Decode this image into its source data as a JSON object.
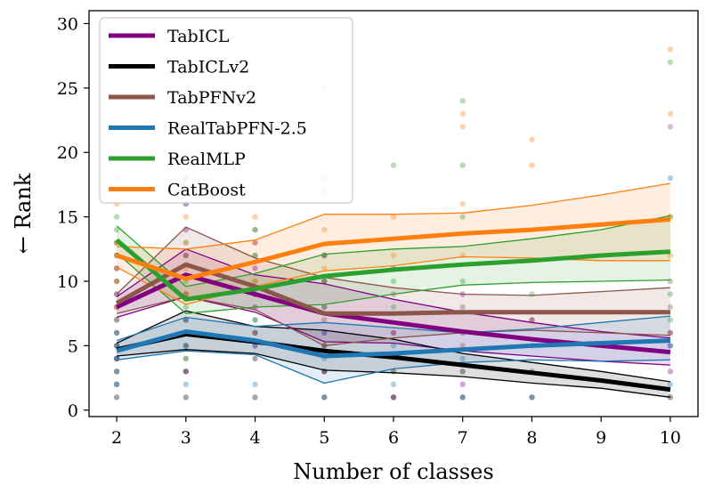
{
  "chart_data": {
    "type": "line",
    "title": "",
    "xlabel": "Number of classes",
    "ylabel": "← Rank",
    "xlim": [
      1.6,
      10.4
    ],
    "ylim": [
      -0.5,
      31.0
    ],
    "xticks": [
      2,
      3,
      4,
      5,
      6,
      7,
      8,
      9,
      10
    ],
    "xtick_labels": [
      "2",
      "3",
      "4",
      "5",
      "6",
      "7",
      "8",
      "9",
      "10"
    ],
    "yticks": [
      0,
      5,
      10,
      15,
      20,
      25,
      30
    ],
    "ytick_labels": [
      "0",
      "5",
      "10",
      "15",
      "20",
      "25",
      "30"
    ],
    "grid": false,
    "legend_position": "top-left",
    "series": [
      {
        "name": "TabICL",
        "color": "#800080",
        "x": [
          2,
          3,
          4,
          5,
          6,
          7,
          8,
          9,
          10
        ],
        "mean": [
          8.0,
          10.5,
          9.0,
          7.5,
          6.8,
          6.1,
          5.5,
          5.0,
          4.5
        ],
        "lower": [
          7.2,
          8.8,
          7.6,
          5.3,
          5.2,
          4.6,
          4.2,
          3.8,
          3.5
        ],
        "upper": [
          8.8,
          12.5,
          10.5,
          9.8,
          8.6,
          7.6,
          6.8,
          6.1,
          5.6
        ],
        "points": [
          [
            2,
            4
          ],
          [
            2,
            7
          ],
          [
            2,
            8
          ],
          [
            2,
            9
          ],
          [
            2,
            10
          ],
          [
            2,
            11
          ],
          [
            2,
            12
          ],
          [
            3,
            3
          ],
          [
            3,
            6
          ],
          [
            3,
            9
          ],
          [
            3,
            12
          ],
          [
            3,
            14
          ],
          [
            3,
            18
          ],
          [
            4,
            5
          ],
          [
            4,
            8
          ],
          [
            4,
            9
          ],
          [
            4,
            11
          ],
          [
            4,
            13
          ],
          [
            5,
            3
          ],
          [
            5,
            6
          ],
          [
            5,
            8
          ],
          [
            5,
            10
          ],
          [
            5,
            12
          ],
          [
            6,
            1
          ],
          [
            6,
            6
          ],
          [
            6,
            11
          ],
          [
            7,
            2
          ],
          [
            7,
            6
          ],
          [
            7,
            9
          ],
          [
            8,
            3
          ],
          [
            8,
            7
          ],
          [
            10,
            3
          ],
          [
            10,
            5
          ],
          [
            10,
            6
          ]
        ]
      },
      {
        "name": "TabICLv2",
        "color": "#000000",
        "x": [
          2,
          3,
          4,
          5,
          6,
          7,
          8,
          9,
          10
        ],
        "mean": [
          4.7,
          5.9,
          5.3,
          4.6,
          4.1,
          3.5,
          2.9,
          2.3,
          1.6
        ],
        "lower": [
          4.2,
          4.7,
          4.4,
          3.1,
          2.9,
          2.6,
          2.1,
          1.7,
          1.0
        ],
        "upper": [
          5.2,
          7.7,
          6.5,
          6.2,
          5.5,
          4.4,
          3.7,
          3.0,
          2.2
        ],
        "points": [
          [
            2,
            1
          ],
          [
            2,
            2
          ],
          [
            2,
            3
          ],
          [
            2,
            4
          ],
          [
            2,
            5
          ],
          [
            2,
            6
          ],
          [
            3,
            1
          ],
          [
            3,
            3
          ],
          [
            3,
            5
          ],
          [
            3,
            7
          ],
          [
            4,
            1
          ],
          [
            4,
            4
          ],
          [
            4,
            6
          ],
          [
            5,
            1
          ],
          [
            5,
            3
          ],
          [
            5,
            5
          ],
          [
            6,
            1
          ],
          [
            6,
            3
          ],
          [
            7,
            1
          ],
          [
            7,
            3
          ],
          [
            8,
            1
          ],
          [
            10,
            1
          ]
        ]
      },
      {
        "name": "TabPFNv2",
        "color": "#8c564b",
        "x": [
          2,
          3,
          4,
          5,
          6,
          7,
          8,
          9,
          10
        ],
        "mean": [
          8.3,
          11.3,
          9.6,
          7.5,
          7.5,
          7.6,
          7.6,
          7.6,
          7.6
        ],
        "lower": [
          7.5,
          8.8,
          7.8,
          5.0,
          5.6,
          6.0,
          6.2,
          6.0,
          5.8
        ],
        "upper": [
          9.0,
          14.2,
          11.8,
          10.3,
          9.5,
          9.0,
          8.9,
          9.2,
          9.5
        ],
        "points": [
          [
            2,
            5
          ],
          [
            2,
            8
          ],
          [
            2,
            9
          ],
          [
            2,
            11
          ],
          [
            2,
            13
          ],
          [
            3,
            4
          ],
          [
            3,
            9
          ],
          [
            3,
            12
          ],
          [
            3,
            16
          ],
          [
            4,
            6
          ],
          [
            4,
            9
          ],
          [
            4,
            12
          ],
          [
            4,
            14
          ],
          [
            5,
            5
          ],
          [
            5,
            7
          ],
          [
            5,
            10
          ],
          [
            5,
            12
          ],
          [
            6,
            6
          ],
          [
            6,
            9
          ],
          [
            7,
            5
          ],
          [
            7,
            8
          ],
          [
            8,
            7
          ],
          [
            10,
            6
          ],
          [
            10,
            8
          ],
          [
            10,
            10
          ],
          [
            10,
            22
          ]
        ]
      },
      {
        "name": "RealTabPFN-2.5",
        "color": "#1f77b4",
        "x": [
          2,
          3,
          4,
          5,
          6,
          7,
          8,
          9,
          10
        ],
        "mean": [
          4.6,
          6.1,
          5.4,
          4.2,
          4.4,
          4.7,
          5.0,
          5.2,
          5.4
        ],
        "lower": [
          3.9,
          4.6,
          4.3,
          2.1,
          3.2,
          3.7,
          3.9,
          3.8,
          3.9
        ],
        "upper": [
          5.4,
          7.2,
          6.5,
          6.8,
          6.4,
          6.0,
          6.3,
          6.8,
          7.3
        ],
        "points": [
          [
            2,
            2
          ],
          [
            2,
            3
          ],
          [
            2,
            4
          ],
          [
            2,
            5
          ],
          [
            2,
            6
          ],
          [
            3,
            2
          ],
          [
            3,
            5
          ],
          [
            3,
            7
          ],
          [
            3,
            16
          ],
          [
            4,
            2
          ],
          [
            4,
            5
          ],
          [
            4,
            7
          ],
          [
            5,
            1
          ],
          [
            5,
            4
          ],
          [
            5,
            6
          ],
          [
            6,
            2
          ],
          [
            6,
            5
          ],
          [
            7,
            1
          ],
          [
            7,
            4
          ],
          [
            8,
            1
          ],
          [
            8,
            5
          ],
          [
            10,
            2
          ],
          [
            10,
            5
          ],
          [
            10,
            18
          ]
        ]
      },
      {
        "name": "RealMLP",
        "color": "#2ca02c",
        "x": [
          2,
          3,
          4,
          5,
          6,
          7,
          8,
          9,
          10
        ],
        "mean": [
          13.2,
          8.6,
          9.4,
          10.4,
          10.9,
          11.3,
          11.6,
          12.0,
          12.3
        ],
        "lower": [
          12.2,
          7.5,
          8.0,
          8.2,
          9.0,
          9.7,
          9.9,
          10.0,
          10.1
        ],
        "upper": [
          14.3,
          9.6,
          10.6,
          12.1,
          12.5,
          12.7,
          13.3,
          14.0,
          15.1
        ],
        "points": [
          [
            2,
            7
          ],
          [
            2,
            10
          ],
          [
            2,
            12
          ],
          [
            2,
            13
          ],
          [
            2,
            14
          ],
          [
            2,
            15
          ],
          [
            3,
            4
          ],
          [
            3,
            8
          ],
          [
            3,
            10
          ],
          [
            3,
            13
          ],
          [
            4,
            7
          ],
          [
            4,
            10
          ],
          [
            4,
            12
          ],
          [
            4,
            14
          ],
          [
            5,
            8
          ],
          [
            5,
            10
          ],
          [
            5,
            12
          ],
          [
            5,
            17
          ],
          [
            6,
            8
          ],
          [
            6,
            10
          ],
          [
            6,
            19
          ],
          [
            7,
            10
          ],
          [
            7,
            15
          ],
          [
            7,
            19
          ],
          [
            7,
            24
          ],
          [
            8,
            9
          ],
          [
            10,
            7
          ],
          [
            10,
            9
          ],
          [
            10,
            15
          ],
          [
            10,
            27
          ]
        ]
      },
      {
        "name": "CatBoost",
        "color": "#ff7f0e",
        "x": [
          2,
          3,
          4,
          5,
          6,
          7,
          8,
          9,
          10
        ],
        "mean": [
          12.0,
          10.2,
          11.5,
          12.9,
          13.3,
          13.7,
          14.0,
          14.4,
          14.8
        ],
        "lower": [
          11.1,
          8.2,
          9.6,
          10.8,
          11.2,
          11.9,
          11.8,
          11.6,
          11.6
        ],
        "upper": [
          12.7,
          12.5,
          13.2,
          15.2,
          15.2,
          15.3,
          15.9,
          16.7,
          17.6
        ],
        "points": [
          [
            2,
            8
          ],
          [
            2,
            10
          ],
          [
            2,
            11
          ],
          [
            2,
            12
          ],
          [
            2,
            13
          ],
          [
            2,
            16
          ],
          [
            2,
            18
          ],
          [
            3,
            9
          ],
          [
            3,
            11
          ],
          [
            3,
            13
          ],
          [
            3,
            15
          ],
          [
            4,
            10
          ],
          [
            4,
            13
          ],
          [
            4,
            15
          ],
          [
            5,
            11
          ],
          [
            5,
            14
          ],
          [
            5,
            18
          ],
          [
            5,
            25
          ],
          [
            6,
            12
          ],
          [
            6,
            15
          ],
          [
            7,
            12
          ],
          [
            7,
            16
          ],
          [
            7,
            22
          ],
          [
            7,
            23
          ],
          [
            8,
            19
          ],
          [
            8,
            21
          ],
          [
            10,
            12
          ],
          [
            10,
            15
          ],
          [
            10,
            23
          ],
          [
            10,
            28
          ]
        ]
      }
    ]
  }
}
